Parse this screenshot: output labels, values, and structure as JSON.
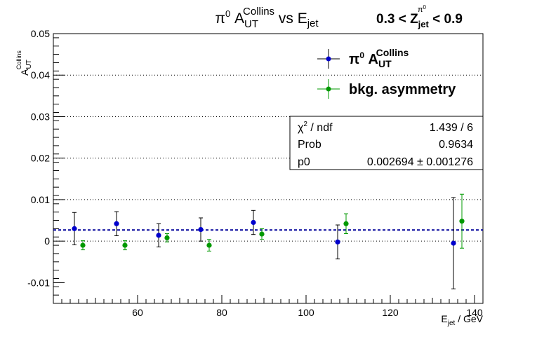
{
  "chart_data": {
    "type": "scatter",
    "title": {
      "prefix": "π",
      "prefix_sup": "0",
      "main": " A",
      "main_sub": "UT",
      "main_sup": "Collins",
      "suffix": " vs E",
      "suffix_sub": "jet"
    },
    "zrange": {
      "prefix": "0.3 < Z",
      "sub": "jet",
      "sup": "π",
      "sup_sup": "0",
      "suffix": " < 0.9"
    },
    "xlabel": {
      "main": "E",
      "sub": "jet",
      "rest": "  / GeV"
    },
    "ylabel": {
      "main": "A",
      "sub": "UT",
      "sup": "Collins"
    },
    "xlim": [
      40,
      142
    ],
    "ylim": [
      -0.015,
      0.05
    ],
    "xticks": [
      60,
      80,
      100,
      120,
      140
    ],
    "xtick_labels": [
      "60",
      "80",
      "100",
      "120",
      "140"
    ],
    "yticks": [
      -0.01,
      0,
      0.01,
      0.02,
      0.03,
      0.04,
      0.05
    ],
    "ytick_labels": [
      "-0.01",
      "0",
      "0.01",
      "0.02",
      "0.03",
      "0.04",
      "0.05"
    ],
    "grid": "horizontal dotted",
    "series": [
      {
        "name_main": "π",
        "name_sup": "0",
        "name_rest": " A",
        "name_sub": "UT",
        "name_sup2": "Collins",
        "color": "#0000cc",
        "x": [
          45.0,
          55.0,
          65.0,
          75.0,
          87.5,
          107.5,
          135.0
        ],
        "y": [
          0.003,
          0.0042,
          0.0014,
          0.0028,
          0.0045,
          -0.0002,
          -0.0005
        ],
        "err": [
          0.0039,
          0.0029,
          0.0028,
          0.0028,
          0.0029,
          0.0041,
          0.011
        ]
      },
      {
        "name": "bkg. asymmetry",
        "color": "#009900",
        "x": [
          47.0,
          57.0,
          67.0,
          77.0,
          89.5,
          109.5,
          137.0
        ],
        "y": [
          -0.001,
          -0.001,
          0.0008,
          -0.001,
          0.0017,
          0.0042,
          0.0048
        ],
        "err": [
          0.0011,
          0.0011,
          0.001,
          0.0014,
          0.0013,
          0.0024,
          0.0065
        ]
      }
    ],
    "fit": {
      "value": 0.002694,
      "color": "#000099",
      "rows": [
        {
          "label": "χ",
          "label_sup": "2",
          "label_rest": " / ndf",
          "value": "1.439 / 6"
        },
        {
          "label": "Prob",
          "value": "0.9634"
        },
        {
          "label": "p0",
          "value": "0.002694 ± 0.001276"
        }
      ]
    }
  }
}
